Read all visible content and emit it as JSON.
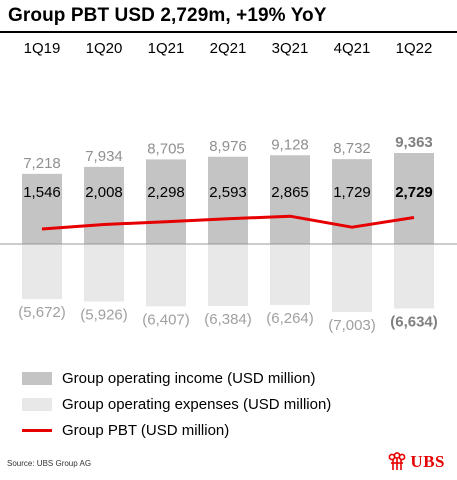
{
  "title": "Group PBT USD 2,729m, +19% YoY",
  "source": "Source: UBS Group AG",
  "logo": {
    "text": "UBS",
    "icon": "keys-icon"
  },
  "colors": {
    "income": "#c4c4c4",
    "expenses": "#e8e8e8",
    "pbt_line": "#e60000",
    "income_label": "#909090",
    "expenses_label": "#a0a0a0",
    "last_label": "#808080"
  },
  "legend": [
    {
      "label": "Group operating income (USD million)",
      "kind": "box",
      "color": "#c4c4c4"
    },
    {
      "label": "Group operating expenses (USD million)",
      "kind": "box",
      "color": "#e8e8e8"
    },
    {
      "label": "Group PBT (USD million)",
      "kind": "line",
      "color": "#e60000"
    }
  ],
  "chart_data": {
    "type": "bar",
    "categories": [
      "1Q19",
      "1Q20",
      "1Q21",
      "2Q21",
      "3Q21",
      "4Q21",
      "1Q22"
    ],
    "series": [
      {
        "name": "Group operating income (USD million)",
        "type": "bar",
        "values": [
          7218,
          7934,
          8705,
          8976,
          9128,
          8732,
          9363
        ],
        "labels": [
          "7,218",
          "7,934",
          "8,705",
          "8,976",
          "9,128",
          "8,732",
          "9,363"
        ]
      },
      {
        "name": "Group operating expenses (USD million)",
        "type": "bar",
        "values": [
          -5672,
          -5926,
          -6407,
          -6384,
          -6264,
          -7003,
          -6634
        ],
        "labels": [
          "(5,672)",
          "(5,926)",
          "(6,407)",
          "(6,384)",
          "(6,264)",
          "(7,003)",
          "(6,634)"
        ]
      },
      {
        "name": "Group PBT (USD million)",
        "type": "line",
        "values": [
          1546,
          2008,
          2298,
          2593,
          2865,
          1729,
          2729
        ],
        "labels": [
          "1,546",
          "2,008",
          "2,298",
          "2,593",
          "2,865",
          "1,729",
          "2,729"
        ]
      }
    ],
    "highlight_last": true
  }
}
